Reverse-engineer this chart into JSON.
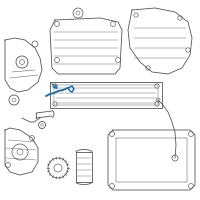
{
  "background_color": "#ffffff",
  "line_color": "#555555",
  "highlight_color": "#1a6fa8",
  "figsize": [
    2.0,
    2.0
  ],
  "dpi": 100
}
